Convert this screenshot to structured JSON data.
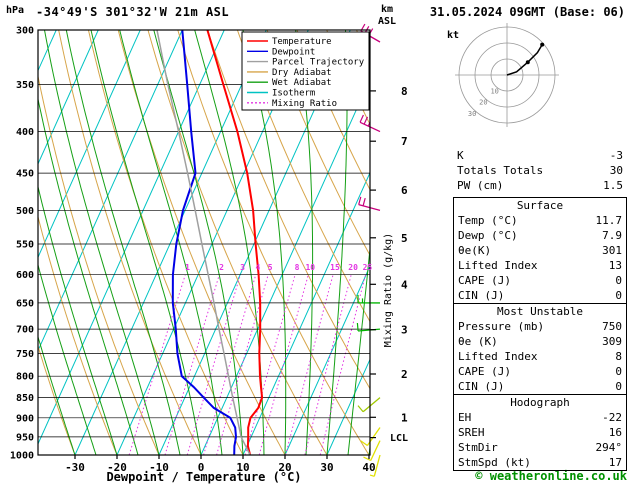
{
  "header": {
    "pressure_unit": "hPa",
    "title": "-34°49'S 301°32'W 21m ASL",
    "datetime": "31.05.2024 09GMT (Base: 06)"
  },
  "footer": {
    "xaxis_title": "Dewpoint / Temperature (°C)",
    "copyright": "© weatheronline.co.uk"
  },
  "chart_data": {
    "type": "line",
    "subtype": "skewt_log_p_sounding",
    "title": "-34°49'S 301°32'W 21m ASL",
    "valid_datetime": "31.05.2024 09GMT",
    "base_run": "06",
    "pressure_axis": {
      "unit": "hPa",
      "scale": "log",
      "range": [
        300,
        1000
      ],
      "ticks": [
        300,
        350,
        400,
        450,
        500,
        550,
        600,
        650,
        700,
        750,
        800,
        850,
        900,
        950,
        1000
      ]
    },
    "temperature_axis": {
      "label": "Dewpoint / Temperature (°C)",
      "ticks": [
        -30,
        -20,
        -10,
        0,
        10,
        20,
        30,
        40
      ]
    },
    "km_axis": {
      "header": [
        "km",
        "ASL"
      ],
      "entries": [
        {
          "label": "8",
          "pressure": 356.5
        },
        {
          "label": "7",
          "pressure": 411.1
        },
        {
          "label": "6",
          "pressure": 472.2
        },
        {
          "label": "5",
          "pressure": 540.5
        },
        {
          "label": "4",
          "pressure": 616.6
        },
        {
          "label": "3",
          "pressure": 701.2
        },
        {
          "label": "2",
          "pressure": 795.0
        },
        {
          "label": "1",
          "pressure": 898.8
        }
      ],
      "lcl": {
        "label": "LCL",
        "pressure": 952
      }
    },
    "mixing_ratio_axis": {
      "label": "Mixing Ratio (g/kg)",
      "values": [
        1,
        2,
        3,
        4,
        5,
        8,
        10,
        15,
        20,
        25
      ]
    },
    "legend": [
      {
        "label": "Temperature",
        "color": "#ff0000",
        "style": "solid"
      },
      {
        "label": "Dewpoint",
        "color": "#0000e6",
        "style": "solid"
      },
      {
        "label": "Parcel Trajectory",
        "color": "#a0a0a0",
        "style": "solid"
      },
      {
        "label": "Dry Adiabat",
        "color": "#d7a54a",
        "style": "solid"
      },
      {
        "label": "Wet Adiabat",
        "color": "#15a015",
        "style": "solid"
      },
      {
        "label": "Isotherm",
        "color": "#00c3c3",
        "style": "solid"
      },
      {
        "label": "Mixing Ratio",
        "color": "#e335e3",
        "style": "dotted"
      }
    ],
    "series": [
      {
        "name": "Temperature",
        "color": "#ff0000",
        "width": 2,
        "points_p_T": [
          [
            1000,
            11.7
          ],
          [
            975,
            10.2
          ],
          [
            950,
            9.3
          ],
          [
            925,
            8.3
          ],
          [
            900,
            7.8
          ],
          [
            875,
            8.6
          ],
          [
            850,
            8.4
          ],
          [
            825,
            7.0
          ],
          [
            800,
            5.6
          ],
          [
            750,
            3.0
          ],
          [
            700,
            0.6
          ],
          [
            650,
            -2.2
          ],
          [
            600,
            -5.6
          ],
          [
            550,
            -9.6
          ],
          [
            500,
            -13.8
          ],
          [
            450,
            -19.2
          ],
          [
            400,
            -26.0
          ],
          [
            350,
            -34.4
          ],
          [
            300,
            -44.0
          ]
        ]
      },
      {
        "name": "Dewpoint",
        "color": "#0000e6",
        "width": 2,
        "points_p_T": [
          [
            1000,
            7.9
          ],
          [
            975,
            7.0
          ],
          [
            950,
            6.4
          ],
          [
            925,
            5.2
          ],
          [
            900,
            3.0
          ],
          [
            875,
            -2.0
          ],
          [
            850,
            -5.5
          ],
          [
            825,
            -9.0
          ],
          [
            800,
            -13.0
          ],
          [
            750,
            -16.5
          ],
          [
            700,
            -19.5
          ],
          [
            650,
            -23.0
          ],
          [
            600,
            -26.0
          ],
          [
            550,
            -28.5
          ],
          [
            500,
            -30.5
          ],
          [
            450,
            -31.5
          ],
          [
            400,
            -37.0
          ],
          [
            350,
            -43.0
          ],
          [
            300,
            -50.0
          ]
        ]
      },
      {
        "name": "Parcel Trajectory",
        "color": "#a0a0a0",
        "width": 1.5,
        "points_p_T": [
          [
            1000,
            11.7
          ],
          [
            950,
            7.6
          ],
          [
            900,
            4.6
          ],
          [
            850,
            1.4
          ],
          [
            800,
            -1.9
          ],
          [
            750,
            -5.4
          ],
          [
            700,
            -9.2
          ],
          [
            650,
            -13.2
          ],
          [
            600,
            -17.6
          ],
          [
            550,
            -22.4
          ],
          [
            500,
            -27.6
          ],
          [
            450,
            -33.4
          ],
          [
            400,
            -40.0
          ],
          [
            350,
            -47.6
          ],
          [
            300,
            -56.0
          ]
        ]
      }
    ],
    "wind_barbs": [
      {
        "pressure": 300,
        "speed_kt": 30,
        "direction_deg": 300,
        "color": "#c8007d"
      },
      {
        "pressure": 400,
        "speed_kt": 25,
        "direction_deg": 295,
        "color": "#c8007d"
      },
      {
        "pressure": 500,
        "speed_kt": 20,
        "direction_deg": 285,
        "color": "#c8007d"
      },
      {
        "pressure": 650,
        "speed_kt": 15,
        "direction_deg": 270,
        "color": "#00b400"
      },
      {
        "pressure": 700,
        "speed_kt": 10,
        "direction_deg": 265,
        "color": "#00b400"
      },
      {
        "pressure": 850,
        "speed_kt": 10,
        "direction_deg": 230,
        "color": "#a0c800"
      },
      {
        "pressure": 925,
        "speed_kt": 10,
        "direction_deg": 215,
        "color": "#e1e100"
      },
      {
        "pressure": 960,
        "speed_kt": 10,
        "direction_deg": 205,
        "color": "#e1e100"
      },
      {
        "pressure": 1000,
        "speed_kt": 5,
        "direction_deg": 195,
        "color": "#e1e100"
      }
    ],
    "hodograph": {
      "unit": "kt",
      "ring_radii_kt": [
        10,
        20,
        30
      ],
      "ring_labels": [
        "10",
        "20",
        "30"
      ],
      "trace_uv_kt": [
        [
          0,
          0
        ],
        [
          6,
          2
        ],
        [
          13,
          8
        ],
        [
          19,
          14
        ],
        [
          22,
          19
        ]
      ]
    },
    "background": {
      "isotherms": {
        "color": "#00c3c3",
        "from": -80,
        "to": 40,
        "step": 10
      },
      "dry_adiabats": {
        "color": "#d7a54a",
        "from": -40,
        "to": 110,
        "step": 10
      },
      "wet_adiabats": {
        "color": "#15a015",
        "from": -30,
        "to": 40,
        "step": 5
      },
      "mixing_ratio_lines": {
        "color": "#e335e3"
      },
      "pressure_gridline_color": "#000000"
    }
  },
  "stats": {
    "indices": [
      {
        "label": "K",
        "value": "-3"
      },
      {
        "label": "Totals Totals",
        "value": "30"
      },
      {
        "label": "PW (cm)",
        "value": "1.5"
      }
    ],
    "sections": [
      {
        "title": "Surface",
        "rows": [
          [
            "Temp (°C)",
            "11.7"
          ],
          [
            "Dewp (°C)",
            "7.9"
          ],
          [
            "θe(K)",
            "301"
          ],
          [
            "Lifted Index",
            "13"
          ],
          [
            "CAPE (J)",
            "0"
          ],
          [
            "CIN (J)",
            "0"
          ]
        ]
      },
      {
        "title": "Most Unstable",
        "rows": [
          [
            "Pressure (mb)",
            "750"
          ],
          [
            "θe (K)",
            "309"
          ],
          [
            "Lifted Index",
            "8"
          ],
          [
            "CAPE (J)",
            "0"
          ],
          [
            "CIN (J)",
            "0"
          ]
        ]
      },
      {
        "title": "Hodograph",
        "rows": [
          [
            "EH",
            "-22"
          ],
          [
            "SREH",
            "16"
          ],
          [
            "StmDir",
            "294°"
          ],
          [
            "StmSpd (kt)",
            "17"
          ]
        ]
      }
    ]
  }
}
